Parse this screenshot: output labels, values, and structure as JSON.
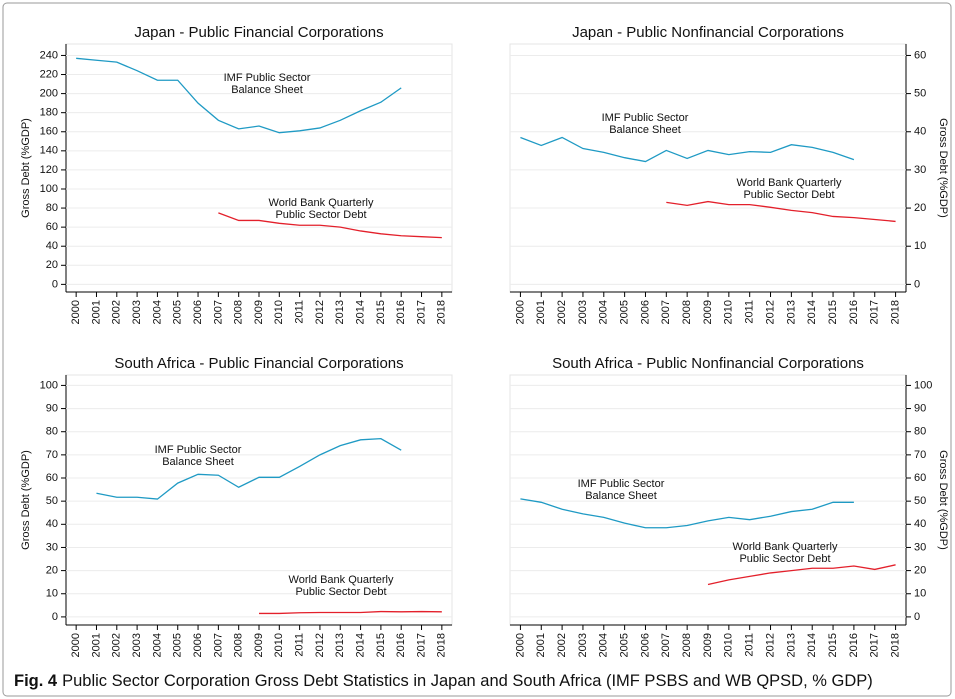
{
  "chart_data": [
    {
      "type": "line",
      "title": "Japan - Public Financial Corporations",
      "ylabel": "Gross Debt (%GDP)",
      "yaxis_side": "left",
      "x": [
        2000,
        2001,
        2002,
        2003,
        2004,
        2005,
        2006,
        2007,
        2008,
        2009,
        2010,
        2011,
        2012,
        2013,
        2014,
        2015,
        2016,
        2017,
        2018
      ],
      "xlim": [
        1999.5,
        2018.5
      ],
      "ylim": [
        -8,
        252
      ],
      "yticks": [
        0,
        20,
        40,
        60,
        80,
        100,
        120,
        140,
        160,
        180,
        200,
        220,
        240
      ],
      "grid": true,
      "series": [
        {
          "color": "#1f9ac4",
          "values": [
            237,
            235,
            233,
            224,
            214,
            214,
            190,
            172,
            163,
            166,
            159,
            161,
            164,
            172,
            182,
            191,
            206,
            null,
            null
          ]
        },
        {
          "color": "#e3202b",
          "values": [
            null,
            null,
            null,
            null,
            null,
            null,
            null,
            75,
            67,
            67,
            64,
            62,
            62,
            60,
            56,
            53,
            51,
            50,
            49
          ]
        }
      ],
      "annotations": [
        [
          "IMF Public Sector",
          "Balance Sheet"
        ],
        [
          "World Bank Quarterly",
          "Public Sector Debt"
        ]
      ]
    },
    {
      "type": "line",
      "title": "Japan - Public Nonfinancial Corporations",
      "ylabel": "Gross Debt (%GDP)",
      "yaxis_side": "right",
      "x": [
        2000,
        2001,
        2002,
        2003,
        2004,
        2005,
        2006,
        2007,
        2008,
        2009,
        2010,
        2011,
        2012,
        2013,
        2014,
        2015,
        2016,
        2017,
        2018
      ],
      "xlim": [
        1999.5,
        2018.5
      ],
      "ylim": [
        -2,
        63
      ],
      "yticks": [
        0,
        10,
        20,
        30,
        40,
        50,
        60
      ],
      "grid": true,
      "series": [
        {
          "color": "#1f9ac4",
          "values": [
            38.5,
            36.4,
            38.5,
            35.6,
            34.6,
            33.2,
            32.2,
            35.1,
            33,
            35.1,
            34,
            34.8,
            34.6,
            36.6,
            35.9,
            34.6,
            32.7,
            null,
            null
          ]
        },
        {
          "color": "#e3202b",
          "values": [
            null,
            null,
            null,
            null,
            null,
            null,
            null,
            21.5,
            20.7,
            21.7,
            20.9,
            20.9,
            20.2,
            19.4,
            18.8,
            17.8,
            17.5,
            17,
            16.5
          ]
        }
      ],
      "annotations": [
        [
          "IMF Public Sector",
          "Balance Sheet"
        ],
        [
          "World Bank Quarterly",
          "Public Sector Debt"
        ]
      ]
    },
    {
      "type": "line",
      "title": "South Africa - Public Financial Corporations",
      "ylabel": "Gross Debt (%GDP)",
      "yaxis_side": "left",
      "x": [
        2000,
        2001,
        2002,
        2003,
        2004,
        2005,
        2006,
        2007,
        2008,
        2009,
        2010,
        2011,
        2012,
        2013,
        2014,
        2015,
        2016,
        2017,
        2018
      ],
      "xlim": [
        1999.5,
        2018.5
      ],
      "ylim": [
        -3.5,
        104.5
      ],
      "yticks": [
        0,
        10,
        20,
        30,
        40,
        50,
        60,
        70,
        80,
        90,
        100
      ],
      "grid": true,
      "series": [
        {
          "color": "#1f9ac4",
          "values": [
            null,
            53.4,
            51.7,
            51.7,
            50.9,
            57.8,
            61.6,
            61.2,
            56,
            60.3,
            60.3,
            65,
            70,
            74,
            76.5,
            77,
            72,
            null,
            null
          ]
        },
        {
          "color": "#e3202b",
          "values": [
            null,
            null,
            null,
            null,
            null,
            null,
            null,
            null,
            null,
            1.5,
            1.5,
            1.8,
            1.9,
            1.9,
            1.9,
            2.3,
            2.2,
            2.3,
            2.2
          ]
        }
      ],
      "annotations": [
        [
          "IMF Public Sector",
          "Balance Sheet"
        ],
        [
          "World Bank Quarterly",
          "Public Sector Debt"
        ]
      ]
    },
    {
      "type": "line",
      "title": "South Africa - Public Nonfinancial Corporations",
      "ylabel": "Gross Debt (%GDP)",
      "yaxis_side": "right",
      "x": [
        2000,
        2001,
        2002,
        2003,
        2004,
        2005,
        2006,
        2007,
        2008,
        2009,
        2010,
        2011,
        2012,
        2013,
        2014,
        2015,
        2016,
        2017,
        2018
      ],
      "xlim": [
        1999.5,
        2018.5
      ],
      "ylim": [
        -3.5,
        104.5
      ],
      "yticks": [
        0,
        10,
        20,
        30,
        40,
        50,
        60,
        70,
        80,
        90,
        100
      ],
      "grid": true,
      "series": [
        {
          "color": "#1f9ac4",
          "values": [
            51,
            49.5,
            46.5,
            44.5,
            43,
            40.5,
            38.5,
            38.5,
            39.5,
            41.5,
            43,
            42,
            43.5,
            45.5,
            46.5,
            49.5,
            49.5,
            null,
            null
          ]
        },
        {
          "color": "#e3202b",
          "values": [
            null,
            null,
            null,
            null,
            null,
            null,
            null,
            null,
            null,
            14,
            16,
            17.5,
            19,
            20,
            21,
            21,
            22,
            20.5,
            22.5
          ]
        }
      ],
      "annotations": [
        [
          "IMF Public Sector",
          "Balance Sheet"
        ],
        [
          "World Bank Quarterly",
          "Public Sector Debt"
        ]
      ]
    }
  ],
  "caption": {
    "label": "Fig. 4",
    "text": "Public Sector Corporation Gross Debt Statistics in Japan and South Africa (IMF PSBS and WB QPSD, % GDP)"
  }
}
